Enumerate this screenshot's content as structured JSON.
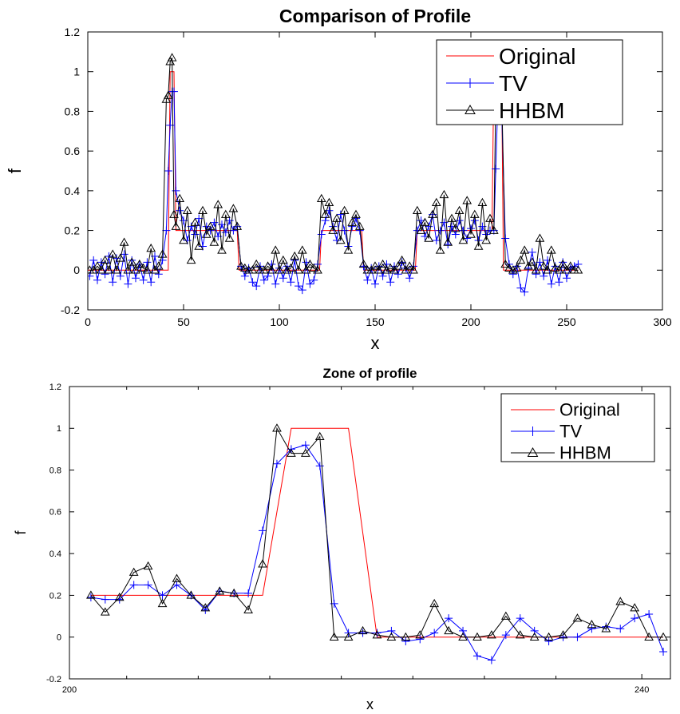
{
  "chart_data": [
    {
      "type": "line",
      "title": "Comparison of Profile",
      "xlabel": "x",
      "ylabel": "f",
      "xlim": [
        0,
        300
      ],
      "ylim": [
        -0.2,
        1.2
      ],
      "xticks": [
        0,
        50,
        100,
        150,
        200,
        250,
        300
      ],
      "yticks": [
        -0.2,
        0,
        0.2,
        0.4,
        0.6,
        0.8,
        1,
        1.2
      ],
      "xtick_labels": [
        "0",
        "50",
        "100",
        "150",
        "200",
        "250",
        "300"
      ],
      "ytick_labels": [
        "-0.2",
        "0",
        "0.2",
        "0.4",
        "0.6",
        "0.8",
        "1",
        "1.2"
      ],
      "legend_position": "top-right",
      "grid": false,
      "series": [
        {
          "name": "Original",
          "color": "#ff0000",
          "marker": "none",
          "x": [
            0,
            42,
            43,
            45,
            46,
            78,
            79,
            121,
            122,
            143,
            144,
            171,
            172,
            211,
            212,
            216,
            217,
            256
          ],
          "values": [
            0,
            0,
            1,
            1,
            0.2,
            0.2,
            0,
            0,
            0.2,
            0.2,
            0,
            0,
            0.2,
            0.2,
            1,
            1,
            0,
            0
          ]
        },
        {
          "name": "TV",
          "color": "#0000ff",
          "marker": "plus",
          "x": [
            1,
            3,
            5,
            7,
            9,
            11,
            13,
            15,
            17,
            19,
            21,
            23,
            25,
            27,
            29,
            31,
            33,
            35,
            37,
            39,
            41,
            42,
            43,
            44,
            45,
            46,
            48,
            50,
            52,
            54,
            56,
            58,
            60,
            62,
            64,
            66,
            68,
            70,
            72,
            74,
            76,
            78,
            80,
            82,
            84,
            86,
            88,
            90,
            92,
            94,
            96,
            98,
            100,
            102,
            104,
            106,
            108,
            110,
            112,
            114,
            116,
            118,
            120,
            122,
            124,
            126,
            128,
            130,
            132,
            134,
            136,
            138,
            140,
            142,
            144,
            146,
            148,
            150,
            152,
            154,
            156,
            158,
            160,
            162,
            164,
            166,
            168,
            170,
            172,
            174,
            176,
            178,
            180,
            182,
            184,
            186,
            188,
            190,
            192,
            194,
            196,
            198,
            200,
            202,
            204,
            206,
            208,
            210,
            212,
            213,
            214,
            215,
            216,
            218,
            220,
            222,
            224,
            226,
            228,
            230,
            232,
            234,
            236,
            238,
            240,
            242,
            244,
            246,
            248,
            250,
            252,
            254,
            256
          ],
          "values": [
            -0.03,
            0.05,
            -0.05,
            0.04,
            -0.02,
            0.07,
            -0.06,
            0.06,
            -0.03,
            0.08,
            -0.07,
            0.05,
            -0.04,
            0.03,
            -0.05,
            0.04,
            -0.06,
            0.07,
            -0.02,
            0.05,
            0.2,
            0.5,
            0.73,
            0.9,
            0.9,
            0.4,
            0.3,
            0.25,
            0.15,
            0.22,
            0.18,
            0.26,
            0.12,
            0.22,
            0.2,
            0.24,
            0.17,
            0.23,
            0.19,
            0.25,
            0.2,
            0.22,
            0.02,
            -0.03,
            0.01,
            -0.06,
            -0.08,
            0.02,
            -0.05,
            -0.03,
            0.03,
            -0.07,
            0.01,
            -0.04,
            0.02,
            -0.06,
            0.05,
            -0.08,
            -0.1,
            0.04,
            -0.07,
            -0.05,
            0.03,
            0.18,
            0.25,
            0.3,
            0.22,
            0.15,
            0.28,
            0.2,
            0.12,
            0.22,
            0.26,
            0.2,
            0.02,
            -0.05,
            0.01,
            -0.07,
            0.02,
            -0.03,
            0.03,
            -0.06,
            0.02,
            -0.02,
            0.04,
            0.01,
            -0.04,
            0.02,
            0.2,
            0.25,
            0.17,
            0.22,
            0.28,
            0.15,
            0.2,
            0.24,
            0.13,
            0.22,
            0.18,
            0.25,
            0.2,
            0.16,
            0.21,
            0.25,
            0.15,
            0.22,
            0.18,
            0.2,
            0.2,
            0.51,
            0.83,
            0.92,
            0.82,
            0.16,
            0.03,
            -0.02,
            0.02,
            -0.09,
            -0.11,
            0.01,
            0.09,
            -0.02,
            0.04,
            -0.03,
            0.05,
            -0.07,
            0.02,
            -0.06,
            0.04,
            -0.04,
            0.01,
            0.02,
            0.03
          ]
        },
        {
          "name": "HHBM",
          "color": "#000000",
          "marker": "triangle",
          "x": [
            1,
            3,
            5,
            7,
            9,
            11,
            13,
            15,
            17,
            19,
            21,
            23,
            25,
            27,
            29,
            31,
            33,
            35,
            37,
            39,
            41,
            42,
            43,
            44,
            45,
            46,
            48,
            50,
            52,
            54,
            56,
            58,
            60,
            62,
            64,
            66,
            68,
            70,
            72,
            74,
            76,
            78,
            80,
            82,
            84,
            86,
            88,
            90,
            92,
            94,
            96,
            98,
            100,
            102,
            104,
            106,
            108,
            110,
            112,
            114,
            116,
            118,
            120,
            122,
            124,
            126,
            128,
            130,
            132,
            134,
            136,
            138,
            140,
            142,
            144,
            146,
            148,
            150,
            152,
            154,
            156,
            158,
            160,
            162,
            164,
            166,
            168,
            170,
            172,
            174,
            176,
            178,
            180,
            182,
            184,
            186,
            188,
            190,
            192,
            194,
            196,
            198,
            200,
            202,
            204,
            206,
            208,
            210,
            212,
            213,
            214,
            215,
            216,
            218,
            220,
            222,
            224,
            226,
            228,
            230,
            232,
            234,
            236,
            238,
            240,
            242,
            244,
            246,
            248,
            250,
            252,
            254,
            256
          ],
          "values": [
            0,
            0,
            0.02,
            0,
            0.05,
            0,
            0.08,
            0,
            0.06,
            0.14,
            0,
            0.04,
            0,
            0.03,
            0.01,
            0,
            0.11,
            0,
            0.02,
            0.08,
            0.86,
            0.88,
            1.05,
            1.07,
            0.28,
            0.22,
            0.36,
            0.15,
            0.3,
            0.05,
            0.24,
            0.12,
            0.3,
            0.18,
            0.22,
            0.14,
            0.33,
            0.1,
            0.28,
            0.16,
            0.31,
            0.22,
            0.02,
            0.01,
            0,
            0,
            0.03,
            0,
            0,
            0.02,
            0,
            0.1,
            0,
            0.05,
            0,
            0.01,
            0.07,
            0,
            0.1,
            0,
            0.03,
            0.01,
            0,
            0.36,
            0.28,
            0.34,
            0.2,
            0.26,
            0.15,
            0.3,
            0.1,
            0.24,
            0.28,
            0.22,
            0.03,
            0,
            0,
            0.02,
            0,
            0.03,
            0,
            0.01,
            0,
            0.02,
            0.05,
            0,
            0.02,
            0,
            0.3,
            0.2,
            0.24,
            0.16,
            0.28,
            0.34,
            0.1,
            0.38,
            0.14,
            0.26,
            0.21,
            0.3,
            0.15,
            0.35,
            0.18,
            0.28,
            0.12,
            0.34,
            0.15,
            0.26,
            0.2,
            0.88,
            0.96,
            0.96,
            0.93,
            0.03,
            0.01,
            0,
            0.01,
            0.05,
            0.1,
            0.02,
            0.04,
            0,
            0.16,
            0.02,
            0,
            0.1,
            0.01,
            0,
            0.03,
            0,
            0.02,
            0,
            0
          ]
        }
      ]
    },
    {
      "type": "line",
      "title": "Zone of profile",
      "xlabel": "x",
      "ylabel": "f",
      "xlim": [
        200,
        242
      ],
      "ylim": [
        -0.2,
        1.2
      ],
      "xticks": [
        200,
        240
      ],
      "xticks_minor": [
        204,
        209,
        214,
        219,
        224,
        229,
        234
      ],
      "yticks": [
        -0.2,
        0,
        0.2,
        0.4,
        0.6,
        0.8,
        1,
        1.2
      ],
      "xtick_labels": [
        "200",
        "240"
      ],
      "ytick_labels": [
        "-0.2",
        "0",
        "0.2",
        "0.4",
        "0.6",
        "0.8",
        "1",
        "1.2"
      ],
      "legend_position": "top-right",
      "grid": false,
      "series": [
        {
          "name": "Original",
          "color": "#ff0000",
          "marker": "none",
          "x": [
            201.5,
            213.5,
            215.5,
            219.5,
            221.5,
            241.5
          ],
          "values": [
            0.2,
            0.2,
            1,
            1,
            0,
            0
          ]
        },
        {
          "name": "TV",
          "color": "#0000ff",
          "marker": "plus",
          "x": [
            201.5,
            202.5,
            203.5,
            204.5,
            205.5,
            206.5,
            207.5,
            208.5,
            209.5,
            210.5,
            211.5,
            212.5,
            213.5,
            214.5,
            215.5,
            216.5,
            217.5,
            218.5,
            219.5,
            220.5,
            221.5,
            222.5,
            223.5,
            224.5,
            225.5,
            226.5,
            227.5,
            228.5,
            229.5,
            230.5,
            231.5,
            232.5,
            233.5,
            234.5,
            235.5,
            236.5,
            237.5,
            238.5,
            239.5,
            240.5,
            241.5
          ],
          "values": [
            0.19,
            0.18,
            0.18,
            0.25,
            0.25,
            0.2,
            0.25,
            0.2,
            0.13,
            0.22,
            0.21,
            0.21,
            0.51,
            0.83,
            0.9,
            0.92,
            0.82,
            0.16,
            0.02,
            0.02,
            0.02,
            0.03,
            -0.02,
            -0.01,
            0.02,
            0.09,
            0.03,
            -0.09,
            -0.11,
            0.01,
            0.09,
            0.03,
            -0.02,
            0,
            0,
            0.04,
            0.05,
            0.04,
            0.09,
            0.11,
            -0.07
          ]
        },
        {
          "name": "HHBM",
          "color": "#000000",
          "marker": "triangle",
          "x": [
            201.5,
            202.5,
            203.5,
            204.5,
            205.5,
            206.5,
            207.5,
            208.5,
            209.5,
            210.5,
            211.5,
            212.5,
            213.5,
            214.5,
            215.5,
            216.5,
            217.5,
            218.5,
            219.5,
            220.5,
            221.5,
            222.5,
            223.5,
            224.5,
            225.5,
            226.5,
            227.5,
            228.5,
            229.5,
            230.5,
            231.5,
            232.5,
            233.5,
            234.5,
            235.5,
            236.5,
            237.5,
            238.5,
            239.5,
            240.5,
            241.5
          ],
          "values": [
            0.2,
            0.12,
            0.19,
            0.31,
            0.34,
            0.16,
            0.28,
            0.2,
            0.14,
            0.22,
            0.21,
            0.13,
            0.35,
            1,
            0.88,
            0.88,
            0.96,
            0,
            0,
            0.03,
            0.01,
            0,
            0,
            0.01,
            0.16,
            0.03,
            0,
            0,
            0.01,
            0.1,
            0.01,
            0,
            0,
            0.01,
            0.09,
            0.06,
            0.04,
            0.17,
            0.14,
            0,
            0
          ]
        }
      ]
    }
  ]
}
